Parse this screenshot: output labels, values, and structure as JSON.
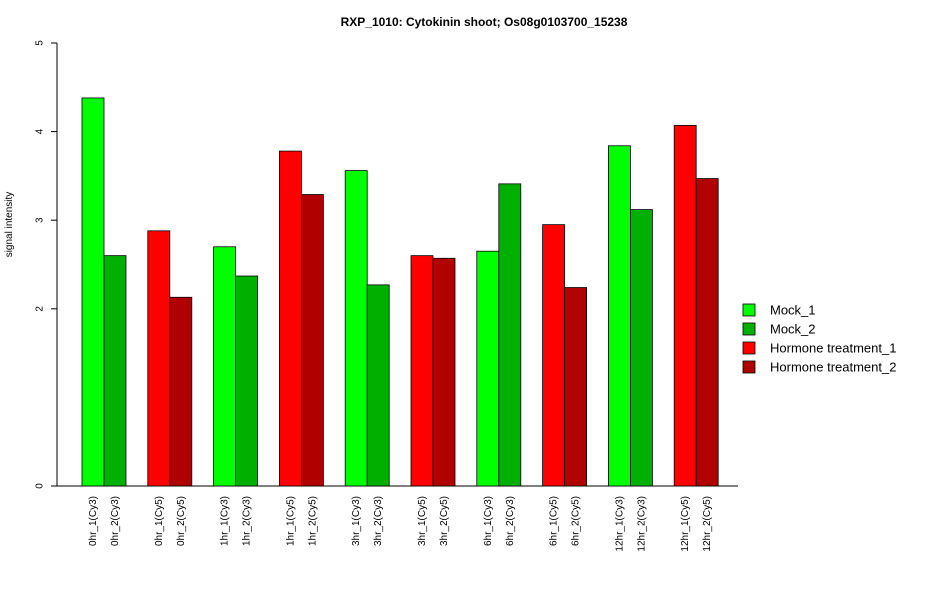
{
  "chart_data": {
    "type": "bar",
    "title": "RXP_1010: Cytokinin shoot; Os08g0103700_15238",
    "xlabel": "",
    "ylabel": "signal intensity",
    "ylim": [
      0,
      5
    ],
    "yticks": [
      0,
      2,
      3,
      4,
      5
    ],
    "grid": false,
    "legend_position": "right",
    "series": [
      {
        "name": "Mock_1",
        "color": "#00ff00"
      },
      {
        "name": "Mock_2",
        "color": "#00b000"
      },
      {
        "name": "Hormone treatment_1",
        "color": "#ff0000"
      },
      {
        "name": "Hormone treatment_2",
        "color": "#b00000"
      }
    ],
    "groups": [
      {
        "bars": [
          {
            "label": "0hr_1(Cy3)",
            "value": 4.38,
            "series": 0
          },
          {
            "label": "0hr_2(Cy3)",
            "value": 2.6,
            "series": 1
          }
        ]
      },
      {
        "bars": [
          {
            "label": "0hr_1(Cy5)",
            "value": 2.88,
            "series": 2
          },
          {
            "label": "0hr_2(Cy5)",
            "value": 2.13,
            "series": 3
          }
        ]
      },
      {
        "bars": [
          {
            "label": "1hr_1(Cy3)",
            "value": 2.7,
            "series": 0
          },
          {
            "label": "1hr_2(Cy3)",
            "value": 2.37,
            "series": 1
          }
        ]
      },
      {
        "bars": [
          {
            "label": "1hr_1(Cy5)",
            "value": 3.78,
            "series": 2
          },
          {
            "label": "1hr_2(Cy5)",
            "value": 3.29,
            "series": 3
          }
        ]
      },
      {
        "bars": [
          {
            "label": "3hr_1(Cy3)",
            "value": 3.56,
            "series": 0
          },
          {
            "label": "3hr_2(Cy3)",
            "value": 2.27,
            "series": 1
          }
        ]
      },
      {
        "bars": [
          {
            "label": "3hr_1(Cy5)",
            "value": 2.6,
            "series": 2
          },
          {
            "label": "3hr_2(Cy5)",
            "value": 2.57,
            "series": 3
          }
        ]
      },
      {
        "bars": [
          {
            "label": "6hr_1(Cy3)",
            "value": 2.65,
            "series": 0
          },
          {
            "label": "6hr_2(Cy3)",
            "value": 3.41,
            "series": 1
          }
        ]
      },
      {
        "bars": [
          {
            "label": "6hr_1(Cy5)",
            "value": 2.95,
            "series": 2
          },
          {
            "label": "6hr_2(Cy5)",
            "value": 2.24,
            "series": 3
          }
        ]
      },
      {
        "bars": [
          {
            "label": "12hr_1(Cy3)",
            "value": 3.84,
            "series": 0
          },
          {
            "label": "12hr_2(Cy3)",
            "value": 3.12,
            "series": 1
          }
        ]
      },
      {
        "bars": [
          {
            "label": "12hr_1(Cy5)",
            "value": 4.07,
            "series": 2
          },
          {
            "label": "12hr_2(Cy5)",
            "value": 3.47,
            "series": 3
          }
        ]
      }
    ]
  }
}
